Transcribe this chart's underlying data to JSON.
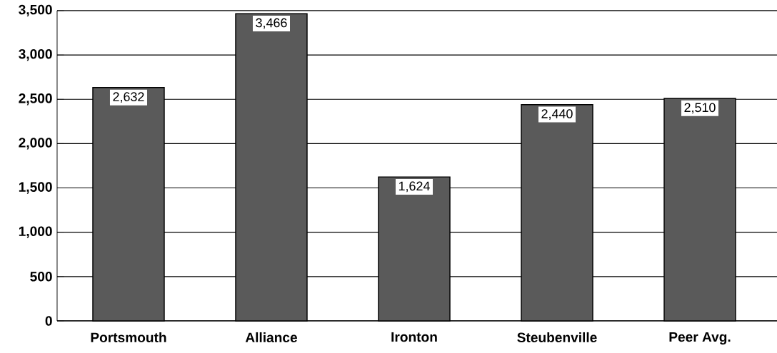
{
  "chart_data": {
    "type": "bar",
    "categories": [
      "Portsmouth",
      "Alliance",
      "Ironton",
      "Steubenville",
      "Peer Avg."
    ],
    "values": [
      2632,
      3466,
      1624,
      2440,
      2510
    ],
    "value_labels": [
      "2,632",
      "3,466",
      "1,624",
      "2,440",
      "2,510"
    ],
    "color": "#5a5a5a",
    "ylim": [
      0,
      3500
    ],
    "yticks": [
      0,
      500,
      {
        "value": 1000,
        "label": "1,000"
      },
      {
        "value": 1500,
        "label": "1,500"
      },
      {
        "value": 2000,
        "label": "2,000"
      },
      {
        "value": 2500,
        "label": "2,500"
      },
      {
        "value": 3000,
        "label": "3,000"
      },
      {
        "value": 3500,
        "label": "3,500"
      }
    ],
    "grid": "y"
  }
}
